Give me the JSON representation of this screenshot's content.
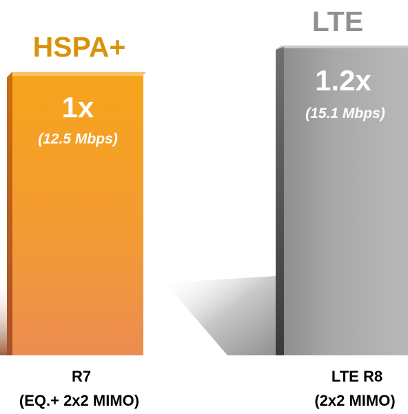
{
  "columns": [
    {
      "technology": "HSPA+",
      "multiplier": "1x",
      "rate": "(12.5 Mbps)",
      "release": "R7",
      "config": "(EQ.+ 2x2 MIMO)"
    },
    {
      "technology": "LTE",
      "multiplier": "1.2x",
      "rate": "(15.1 Mbps)",
      "release": "LTE R8",
      "config": "(2x2 MIMO)"
    }
  ]
}
